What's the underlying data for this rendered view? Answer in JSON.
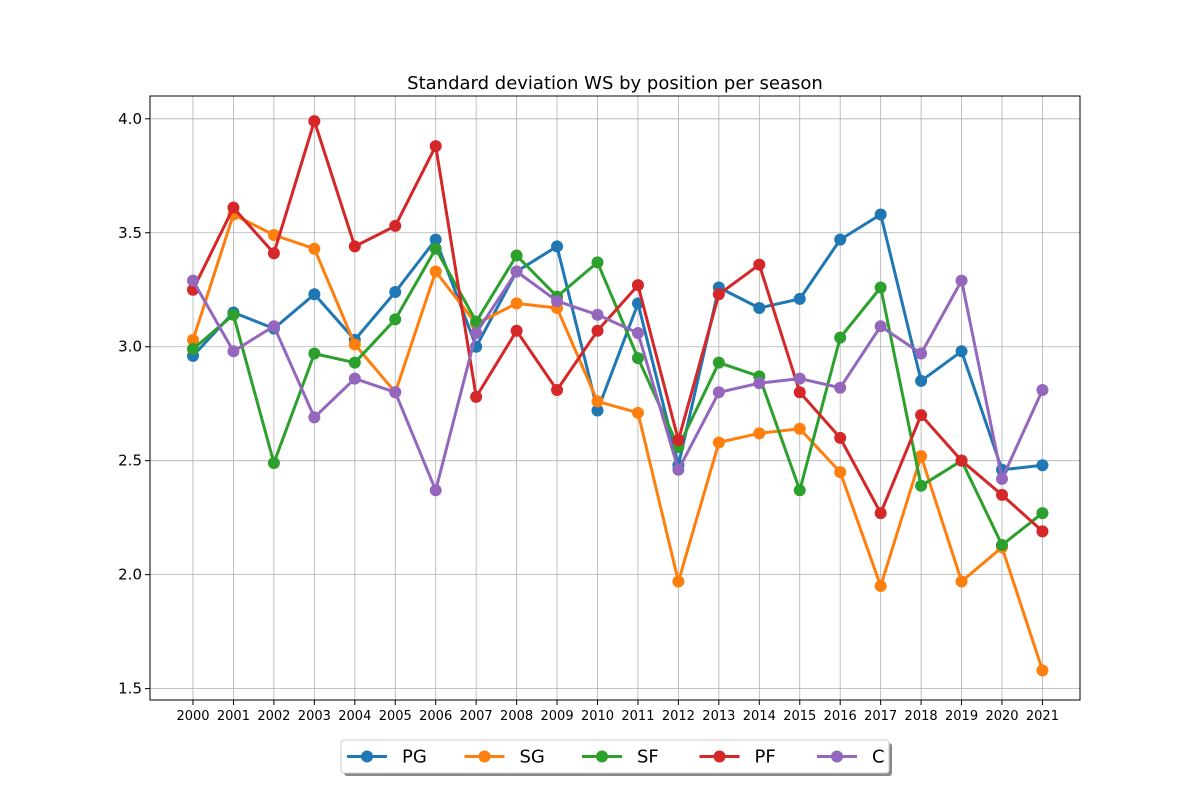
{
  "chart_data": {
    "type": "line",
    "title": "Standard deviation WS by position per season",
    "xlabel": "",
    "ylabel": "",
    "x": [
      "2000",
      "2001",
      "2002",
      "2003",
      "2004",
      "2005",
      "2006",
      "2007",
      "2008",
      "2009",
      "2010",
      "2011",
      "2012",
      "2013",
      "2014",
      "2015",
      "2016",
      "2017",
      "2018",
      "2019",
      "2020",
      "2021"
    ],
    "ylim": [
      1.45,
      4.1
    ],
    "yticks": [
      "1.5",
      "2.0",
      "2.5",
      "3.0",
      "3.5",
      "4.0"
    ],
    "grid": true,
    "legend_position": "bottom-center",
    "series": [
      {
        "name": "PG",
        "color": "#1f77b4",
        "values": [
          2.96,
          3.15,
          3.08,
          3.23,
          3.03,
          3.24,
          3.47,
          3.0,
          3.33,
          3.44,
          2.72,
          3.19,
          2.48,
          3.26,
          3.17,
          3.21,
          3.47,
          3.58,
          2.85,
          2.98,
          2.46,
          2.48
        ]
      },
      {
        "name": "SG",
        "color": "#ff7f0e",
        "values": [
          3.03,
          3.58,
          3.49,
          3.43,
          3.01,
          2.8,
          3.33,
          3.1,
          3.19,
          3.17,
          2.76,
          2.71,
          1.97,
          2.58,
          2.62,
          2.64,
          2.45,
          1.95,
          2.52,
          1.97,
          2.12,
          1.58
        ]
      },
      {
        "name": "SF",
        "color": "#2ca02c",
        "values": [
          2.99,
          3.14,
          2.49,
          2.97,
          2.93,
          3.12,
          3.43,
          3.11,
          3.4,
          3.22,
          3.37,
          2.95,
          2.56,
          2.93,
          2.87,
          2.37,
          3.04,
          3.26,
          2.39,
          2.5,
          2.13,
          2.27
        ]
      },
      {
        "name": "PF",
        "color": "#d62728",
        "values": [
          3.25,
          3.61,
          3.41,
          3.99,
          3.44,
          3.53,
          3.88,
          2.78,
          3.07,
          2.81,
          3.07,
          3.27,
          2.59,
          3.23,
          3.36,
          2.8,
          2.6,
          2.27,
          2.7,
          2.5,
          2.35,
          2.19
        ]
      },
      {
        "name": "C",
        "color": "#9467bd",
        "values": [
          3.29,
          2.98,
          3.09,
          2.69,
          2.86,
          2.8,
          2.37,
          3.06,
          3.33,
          3.2,
          3.14,
          3.06,
          2.46,
          2.8,
          2.84,
          2.86,
          2.82,
          3.09,
          2.97,
          3.29,
          2.42,
          2.81
        ]
      }
    ]
  }
}
